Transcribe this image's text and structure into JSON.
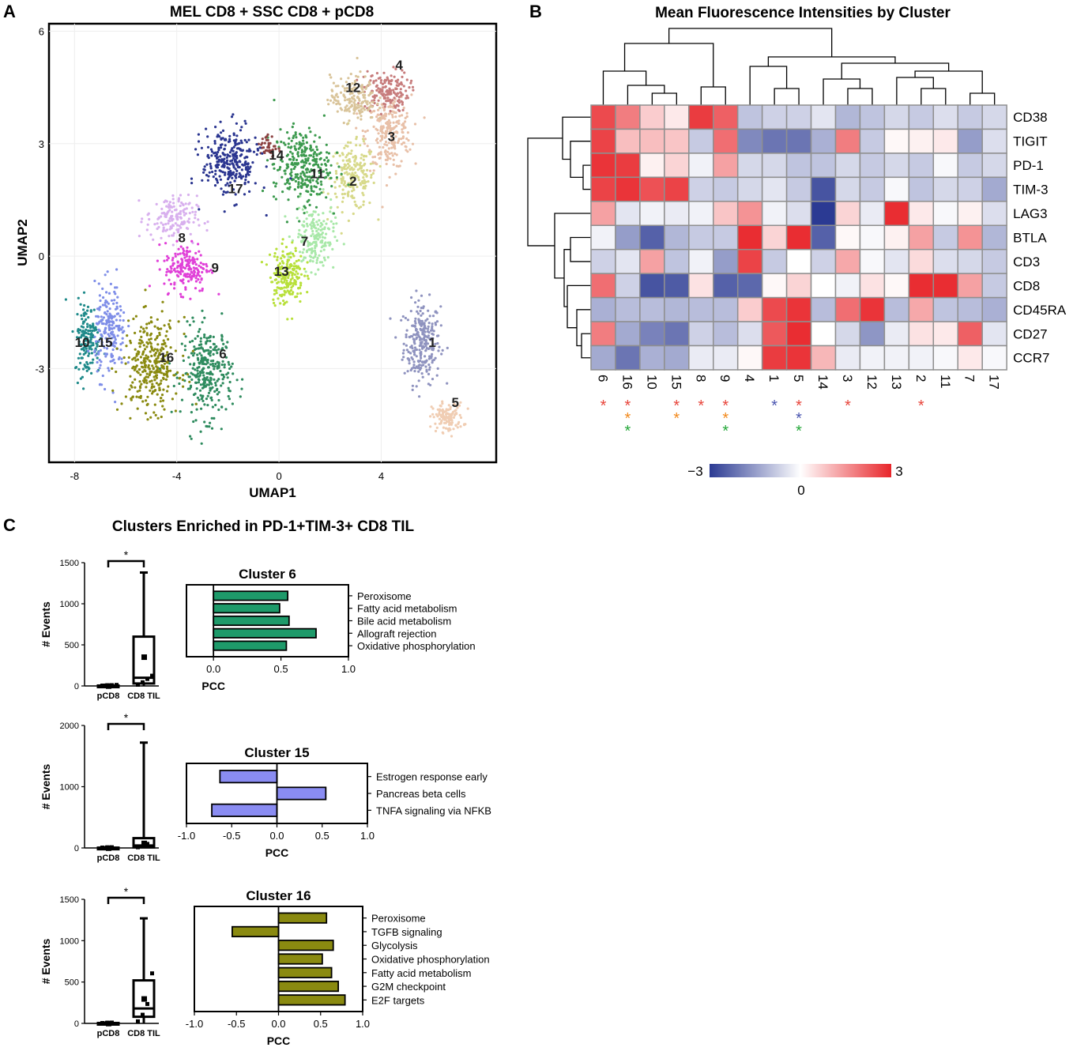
{
  "panel_a": {
    "letter": "A",
    "chart_data": {
      "type": "scatter",
      "title": "MEL CD8 + SSC CD8 + pCD8",
      "xlabel": "UMAP1",
      "ylabel": "UMAP2",
      "xlim": [
        -9,
        8.5
      ],
      "ylim": [
        -5.5,
        6.2
      ],
      "x_ticks": [
        "-8",
        "-4",
        "0",
        "4"
      ],
      "x_tick_values": [
        -8,
        -4,
        0,
        4
      ],
      "y_ticks": [
        "6",
        "3",
        "0",
        "-3"
      ],
      "y_tick_values": [
        6,
        3,
        0,
        -3
      ],
      "clusters": [
        {
          "label": "1",
          "x": 5.6,
          "y": -2.3,
          "sx": 0.65,
          "sy": 1.0,
          "n": 260,
          "color": "#8f93bf"
        },
        {
          "label": "2",
          "x": 2.9,
          "y": 2.1,
          "sx": 0.8,
          "sy": 0.8,
          "n": 200,
          "color": "#d7d98a"
        },
        {
          "label": "3",
          "x": 4.3,
          "y": 3.3,
          "sx": 0.8,
          "sy": 0.9,
          "n": 240,
          "color": "#e8c0a8"
        },
        {
          "label": "4",
          "x": 4.2,
          "y": 4.4,
          "sx": 0.8,
          "sy": 0.5,
          "n": 160,
          "color": "#c77c7c"
        },
        {
          "label": "5",
          "x": 6.6,
          "y": -4.3,
          "sx": 0.55,
          "sy": 0.35,
          "n": 120,
          "color": "#f0cdb3"
        },
        {
          "label": "6",
          "x": -2.8,
          "y": -3.1,
          "sx": 0.9,
          "sy": 1.1,
          "n": 300,
          "color": "#2e8b5e"
        },
        {
          "label": "7",
          "x": 1.4,
          "y": 0.5,
          "sx": 0.7,
          "sy": 0.8,
          "n": 180,
          "color": "#a8e8a8"
        },
        {
          "label": "8",
          "x": -4.2,
          "y": 1.0,
          "sx": 0.9,
          "sy": 0.55,
          "n": 150,
          "color": "#d8b0ee"
        },
        {
          "label": "9",
          "x": -3.6,
          "y": -0.3,
          "sx": 0.8,
          "sy": 0.6,
          "n": 180,
          "color": "#e040d8"
        },
        {
          "label": "10",
          "x": -7.5,
          "y": -2.2,
          "sx": 0.45,
          "sy": 0.9,
          "n": 160,
          "color": "#1f8a8a"
        },
        {
          "label": "11",
          "x": 0.9,
          "y": 2.4,
          "sx": 1.0,
          "sy": 0.9,
          "n": 300,
          "color": "#3c9a4e"
        },
        {
          "label": "12",
          "x": 2.9,
          "y": 4.2,
          "sx": 0.8,
          "sy": 0.55,
          "n": 170,
          "color": "#d9c49a"
        },
        {
          "label": "13",
          "x": 0.3,
          "y": -0.5,
          "sx": 0.6,
          "sy": 0.7,
          "n": 200,
          "color": "#b8e03a"
        },
        {
          "label": "14",
          "x": -0.4,
          "y": 2.9,
          "sx": 0.3,
          "sy": 0.3,
          "n": 40,
          "color": "#8b4040"
        },
        {
          "label": "15",
          "x": -6.6,
          "y": -2.0,
          "sx": 0.55,
          "sy": 1.1,
          "n": 200,
          "color": "#7f8ee8"
        },
        {
          "label": "16",
          "x": -5.0,
          "y": -2.9,
          "sx": 1.0,
          "sy": 1.1,
          "n": 320,
          "color": "#8a8a10"
        },
        {
          "label": "17",
          "x": -1.9,
          "y": 2.5,
          "sx": 1.0,
          "sy": 0.85,
          "n": 280,
          "color": "#2a3590"
        }
      ],
      "label_positions": [
        {
          "label": "1",
          "x": 6.0,
          "y": -2.3
        },
        {
          "label": "2",
          "x": 2.9,
          "y": 2.0
        },
        {
          "label": "3",
          "x": 4.4,
          "y": 3.2
        },
        {
          "label": "4",
          "x": 4.7,
          "y": 5.1
        },
        {
          "label": "5",
          "x": 6.9,
          "y": -3.9
        },
        {
          "label": "6",
          "x": -2.2,
          "y": -2.6
        },
        {
          "label": "7",
          "x": 1.0,
          "y": 0.4
        },
        {
          "label": "8",
          "x": -3.8,
          "y": 0.5
        },
        {
          "label": "9",
          "x": -2.5,
          "y": -0.3
        },
        {
          "label": "10",
          "x": -7.7,
          "y": -2.3
        },
        {
          "label": "11",
          "x": 1.5,
          "y": 2.2
        },
        {
          "label": "12",
          "x": 2.9,
          "y": 4.5
        },
        {
          "label": "13",
          "x": 0.1,
          "y": -0.4
        },
        {
          "label": "14",
          "x": -0.1,
          "y": 2.7
        },
        {
          "label": "15",
          "x": -6.8,
          "y": -2.3
        },
        {
          "label": "16",
          "x": -4.4,
          "y": -2.7
        },
        {
          "label": "17",
          "x": -1.7,
          "y": 1.8
        }
      ]
    }
  },
  "panel_b": {
    "letter": "B",
    "chart_data": {
      "type": "heatmap",
      "title": "Mean Fluorescence Intensities by Cluster",
      "columns": [
        "6",
        "16",
        "10",
        "15",
        "8",
        "9",
        "4",
        "1",
        "5",
        "14",
        "3",
        "12",
        "13",
        "2",
        "11",
        "7",
        "17"
      ],
      "rows": [
        "CD38",
        "TIGIT",
        "PD-1",
        "TIM-3",
        "LAG3",
        "BTLA",
        "CD3",
        "CD8",
        "CD45RA",
        "CD27",
        "CCR7"
      ],
      "values": [
        [
          2.5,
          1.8,
          0.7,
          0.3,
          2.7,
          2.2,
          -0.9,
          -0.7,
          -0.7,
          -0.4,
          -1.1,
          -0.9,
          -0.6,
          -0.8,
          -0.5,
          -0.8,
          -0.6
        ],
        [
          2.6,
          0.9,
          0.9,
          0.8,
          -0.8,
          2.0,
          -1.8,
          -2.1,
          -2.1,
          -1.2,
          1.8,
          -0.8,
          0.1,
          0.2,
          0.3,
          -1.5,
          -0.5
        ],
        [
          2.8,
          2.7,
          0.2,
          0.6,
          -0.2,
          1.3,
          -0.6,
          -0.6,
          -0.9,
          -0.9,
          -0.6,
          -0.8,
          -0.6,
          -0.8,
          -0.1,
          -0.8,
          -0.6
        ],
        [
          2.6,
          2.8,
          2.4,
          2.6,
          -0.7,
          -0.8,
          -0.6,
          -0.4,
          -0.8,
          -2.6,
          -0.6,
          -0.8,
          -0.1,
          -0.9,
          -0.6,
          -0.7,
          -1.3
        ],
        [
          1.3,
          -0.4,
          -0.2,
          -0.3,
          -0.2,
          0.8,
          1.5,
          -0.2,
          -0.5,
          -3.0,
          0.6,
          -0.3,
          2.9,
          0.3,
          -0.1,
          0.2,
          -0.5
        ],
        [
          -0.2,
          -1.5,
          -2.4,
          -1.1,
          -0.8,
          -0.8,
          2.9,
          0.6,
          2.9,
          -2.4,
          0.1,
          -0.1,
          0.2,
          1.3,
          -0.8,
          1.5,
          -1.1
        ],
        [
          -0.7,
          -0.4,
          1.3,
          -0.9,
          -0.2,
          -1.5,
          2.6,
          -0.8,
          0.0,
          -0.7,
          1.2,
          -0.1,
          -0.4,
          0.5,
          -0.5,
          -0.6,
          -0.8
        ],
        [
          2.0,
          -0.7,
          -2.6,
          -2.5,
          0.4,
          -2.4,
          -2.3,
          0.1,
          0.6,
          0.0,
          -0.2,
          0.4,
          0.1,
          2.9,
          2.9,
          1.3,
          -0.8
        ],
        [
          -1.2,
          -1.0,
          -1.0,
          -1.1,
          -1.0,
          -1.0,
          0.7,
          2.5,
          2.8,
          -1.0,
          2.0,
          2.8,
          -1.0,
          1.2,
          -0.9,
          -1.0,
          -1.2
        ],
        [
          1.8,
          -1.3,
          -1.9,
          -2.1,
          -0.7,
          -1.0,
          -0.5,
          2.3,
          2.9,
          0.0,
          -0.6,
          -1.6,
          -0.3,
          0.4,
          0.3,
          2.2,
          -0.4
        ],
        [
          -1.3,
          -2.1,
          -1.2,
          -1.3,
          -0.3,
          -0.3,
          0.1,
          2.7,
          2.8,
          1.0,
          -0.3,
          -0.2,
          -0.2,
          -0.2,
          -0.1,
          0.3,
          -0.1
        ]
      ],
      "value_range": [
        -3,
        3
      ],
      "colorbar": {
        "min_label": "−3",
        "mid_label": "0",
        "max_label": "3",
        "colors": [
          "#2b3a93",
          "#ffffff",
          "#e8262b"
        ]
      },
      "significance": [
        {
          "column": "6",
          "stars": [
            "#e8443a"
          ]
        },
        {
          "column": "16",
          "stars": [
            "#e8443a",
            "#f28a1e",
            "#25a83a"
          ]
        },
        {
          "column": "15",
          "stars": [
            "#e8443a",
            "#f28a1e"
          ]
        },
        {
          "column": "8",
          "stars": [
            "#e8443a"
          ]
        },
        {
          "column": "9",
          "stars": [
            "#e8443a",
            "#f28a1e",
            "#25a83a"
          ]
        },
        {
          "column": "1",
          "stars": [
            "#4a55b0"
          ]
        },
        {
          "column": "5",
          "stars": [
            "#e8443a",
            "#4a55b0",
            "#25a83a"
          ]
        },
        {
          "column": "3",
          "stars": [
            "#e8443a"
          ]
        },
        {
          "column": "2",
          "stars": [
            "#e8443a"
          ]
        }
      ],
      "star_glyph": "*"
    }
  },
  "panel_c": {
    "letter": "C",
    "title": "Clusters Enriched in PD-1+TIM-3+ CD8 TIL",
    "chart_data": [
      {
        "type": "box",
        "ylabel": "# Events",
        "categories": [
          "pCD8",
          "CD8 TIL"
        ],
        "ylim": [
          0,
          1500
        ],
        "y_ticks": [
          0,
          500,
          1000,
          1500
        ],
        "boxes": [
          {
            "name": "pCD8",
            "min": 0,
            "q1": 0,
            "median": 2,
            "q3": 5,
            "max": 15,
            "mean": 3,
            "points": [
              0,
              3,
              5,
              8
            ]
          },
          {
            "name": "CD8 TIL",
            "min": 0,
            "q1": 30,
            "median": 100,
            "q3": 600,
            "max": 1380,
            "mean": 355,
            "points": [
              10,
              40,
              80,
              120
            ]
          }
        ],
        "sig": "*"
      },
      {
        "type": "bar",
        "orientation": "horizontal",
        "title": "Cluster 6",
        "xlabel": "PCC",
        "xlim": [
          -0.2,
          1.0
        ],
        "x_ticks": [
          0.0,
          0.5,
          1.0
        ],
        "x_tick_labels": [
          "0.0",
          "0.5",
          "1.0"
        ],
        "categories": [
          "Peroxisome",
          "Fatty acid metabolism",
          "Bile acid metabolism",
          "Allograft rejection",
          "Oxidative phosphorylation"
        ],
        "values": [
          0.55,
          0.49,
          0.56,
          0.76,
          0.54
        ],
        "color": "#1e9a6a"
      },
      {
        "type": "box",
        "ylabel": "# Events",
        "categories": [
          "pCD8",
          "CD8 TIL"
        ],
        "ylim": [
          0,
          2000
        ],
        "y_ticks": [
          0,
          1000,
          2000
        ],
        "boxes": [
          {
            "name": "pCD8",
            "min": 0,
            "q1": 0,
            "median": 2,
            "q3": 5,
            "max": 12,
            "mean": 3,
            "points": [
              0,
              3,
              5
            ]
          },
          {
            "name": "CD8 TIL",
            "min": 0,
            "q1": 10,
            "median": 40,
            "q3": 160,
            "max": 1720,
            "mean": 80,
            "points": [
              5,
              20,
              60
            ]
          }
        ],
        "sig": "*"
      },
      {
        "type": "bar",
        "orientation": "horizontal",
        "title": "Cluster 15",
        "xlabel": "PCC",
        "xlim": [
          -1.0,
          1.0
        ],
        "x_ticks": [
          -1.0,
          -0.5,
          0.0,
          0.5,
          1.0
        ],
        "x_tick_labels": [
          "-1.0",
          "-0.5",
          "0.0",
          "0.5",
          "1.0"
        ],
        "categories": [
          "Estrogen response early",
          "Pancreas beta cells",
          "TNFA signaling via NFKB"
        ],
        "values": [
          -0.63,
          0.54,
          -0.72
        ],
        "color": "#8a8cf2"
      },
      {
        "type": "box",
        "ylabel": "# Events",
        "categories": [
          "pCD8",
          "CD8 TIL"
        ],
        "ylim": [
          0,
          1500
        ],
        "y_ticks": [
          0,
          500,
          1000,
          1500
        ],
        "boxes": [
          {
            "name": "pCD8",
            "min": 0,
            "q1": 0,
            "median": 2,
            "q3": 5,
            "max": 10,
            "mean": 3,
            "points": [
              0,
              3,
              5
            ]
          },
          {
            "name": "CD8 TIL",
            "min": 0,
            "q1": 80,
            "median": 180,
            "q3": 520,
            "max": 1270,
            "mean": 300,
            "points": [
              20,
              100,
              230,
              600
            ]
          }
        ],
        "sig": "*"
      },
      {
        "type": "bar",
        "orientation": "horizontal",
        "title": "Cluster 16",
        "xlabel": "PCC",
        "xlim": [
          -1.0,
          1.0
        ],
        "x_ticks": [
          -1.0,
          -0.5,
          0.0,
          0.5,
          1.0
        ],
        "x_tick_labels": [
          "-1.0",
          "-0.5",
          "0.0",
          "0.5",
          "1.0"
        ],
        "categories": [
          "Peroxisome",
          "TGFB signaling",
          "Glycolysis",
          "Oxidative phosphorylation",
          "Fatty acid metabolism",
          "G2M checkpoint",
          "E2F targets"
        ],
        "values": [
          0.57,
          -0.55,
          0.65,
          0.52,
          0.63,
          0.71,
          0.79
        ],
        "color": "#8a8a10"
      }
    ]
  }
}
